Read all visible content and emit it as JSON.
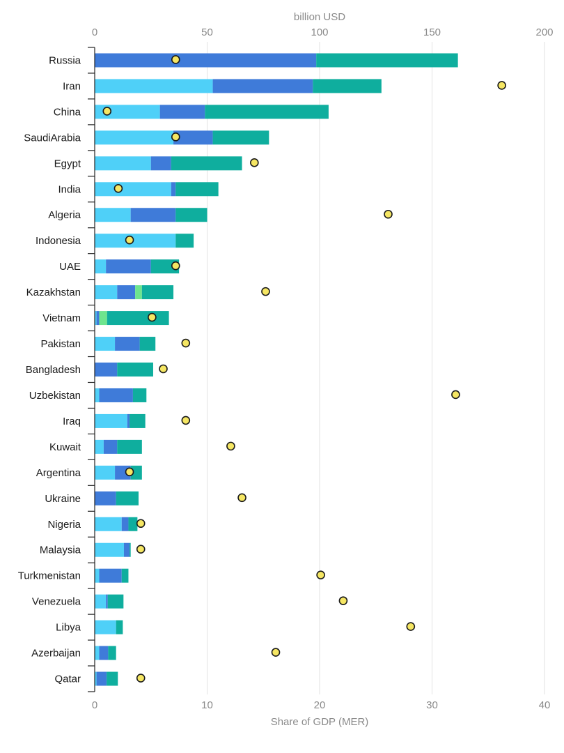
{
  "chart_data": {
    "type": "bar",
    "orientation": "horizontal",
    "stacked": true,
    "title": "",
    "x_top": {
      "label": "billion USD",
      "range": [
        0,
        200
      ],
      "ticks": [
        0,
        50,
        100,
        150,
        200
      ]
    },
    "x_bottom": {
      "label": "Share of GDP (MER)",
      "range": [
        0,
        40
      ],
      "ticks": [
        0,
        10,
        20,
        30,
        40
      ]
    },
    "grid": true,
    "legend": "none",
    "categories": [
      "Russia",
      "Iran",
      "China",
      "SaudiArabia",
      "Egypt",
      "India",
      "Algeria",
      "Indonesia",
      "UAE",
      "Kazakhstan",
      "Vietnam",
      "Pakistan",
      "Bangladesh",
      "Uzbekistan",
      "Iraq",
      "Kuwait",
      "Argentina",
      "Ukraine",
      "Nigeria",
      "Malaysia",
      "Turkmenistan",
      "Venezuela",
      "Libya",
      "Azerbaijan",
      "Qatar"
    ],
    "series": [
      {
        "color": "#4fd0f8",
        "values": [
          0,
          52.5,
          29,
          35,
          25,
          34,
          16,
          36,
          5,
          10,
          0.8,
          9,
          0,
          2,
          14.5,
          4,
          9,
          0,
          12,
          13,
          2,
          5,
          9.5,
          2,
          0.8
        ]
      },
      {
        "color": "#3f7bd9",
        "values": [
          98.5,
          44.5,
          20,
          17.5,
          9,
          2,
          20,
          0,
          20,
          8,
          1.2,
          11,
          10,
          15,
          1,
          6,
          7,
          9.5,
          3,
          2.5,
          10,
          0.8,
          0,
          4,
          4.5
        ]
      },
      {
        "color": "#6ee58e",
        "values": [
          0,
          0,
          0,
          0,
          0,
          0,
          0,
          0,
          0,
          3,
          3.5,
          0,
          0,
          0,
          0,
          0,
          0,
          0,
          0,
          0,
          0,
          0,
          0,
          0,
          0
        ]
      },
      {
        "color": "#0fae9e",
        "values": [
          63,
          30.5,
          55,
          25,
          31.5,
          19,
          14,
          8,
          12.5,
          14,
          27.5,
          7,
          16,
          6,
          7,
          11,
          5,
          10,
          4,
          0.5,
          3,
          7,
          3,
          3.5,
          5
        ]
      }
    ],
    "share_of_gdp": {
      "marker": "circle",
      "color": "#f5e663",
      "values": [
        7.2,
        36.2,
        1.1,
        7.2,
        14.2,
        2.1,
        26.1,
        3.1,
        7.2,
        15.2,
        5.1,
        8.1,
        6.1,
        32.1,
        8.1,
        12.1,
        3.1,
        13.1,
        4.1,
        4.1,
        20.1,
        22.1,
        28.1,
        16.1,
        4.1
      ]
    }
  }
}
